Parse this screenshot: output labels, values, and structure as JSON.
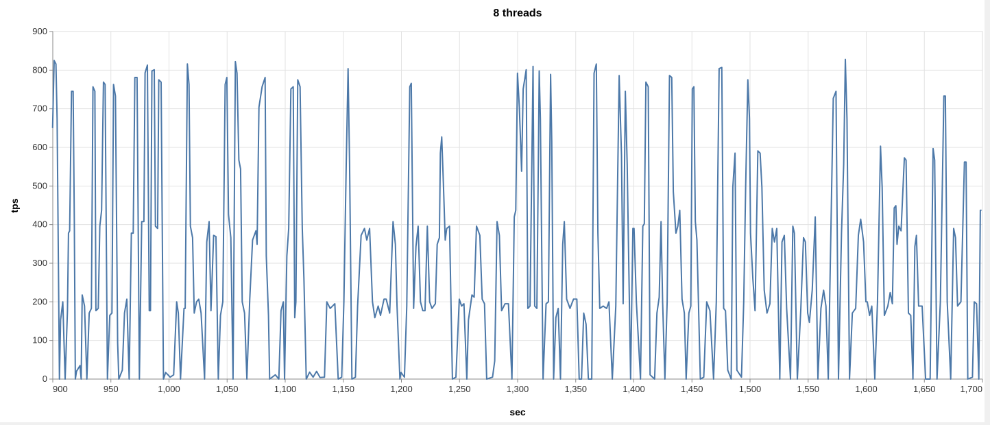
{
  "chart_data": {
    "type": "line",
    "title": "8 threads",
    "xlabel": "sec",
    "ylabel": "tps",
    "xlim": [
      900,
      1700
    ],
    "ylim": [
      0,
      900
    ],
    "xticks": [
      900,
      950,
      1000,
      1050,
      1100,
      1150,
      1200,
      1250,
      1300,
      1350,
      1400,
      1450,
      1500,
      1550,
      1600,
      1650,
      1700
    ],
    "xtick_labels": [
      "900",
      "950",
      "1,000",
      "1,050",
      "1,100",
      "1,150",
      "1,200",
      "1,250",
      "1,300",
      "1,350",
      "1,400",
      "1,450",
      "1,500",
      "1,550",
      "1,600",
      "1,650",
      "1,700"
    ],
    "yticks": [
      0,
      100,
      200,
      300,
      400,
      500,
      600,
      700,
      800,
      900
    ],
    "ytick_labels": [
      "0",
      "100",
      "200",
      "300",
      "400",
      "500",
      "600",
      "700",
      "800",
      "900"
    ],
    "grid": true,
    "color": "#4c78a8",
    "points": [
      [
        899.8,
        650
      ],
      [
        901.2,
        825
      ],
      [
        902.7,
        816
      ],
      [
        903.7,
        674
      ],
      [
        905.7,
        0
      ],
      [
        906.7,
        153
      ],
      [
        908.6,
        200
      ],
      [
        910.6,
        0
      ],
      [
        912.6,
        177
      ],
      [
        913.5,
        378
      ],
      [
        914.5,
        384
      ],
      [
        916.1,
        745
      ],
      [
        917.5,
        745
      ],
      [
        918.5,
        408
      ],
      [
        919.4,
        0
      ],
      [
        920.4,
        20
      ],
      [
        923.4,
        35
      ],
      [
        924.4,
        0
      ],
      [
        925.3,
        218
      ],
      [
        927.3,
        189
      ],
      [
        929.3,
        0
      ],
      [
        931.3,
        171
      ],
      [
        933.2,
        183
      ],
      [
        934.6,
        757
      ],
      [
        936.2,
        745
      ],
      [
        937.1,
        177
      ],
      [
        939.1,
        183
      ],
      [
        940.5,
        396
      ],
      [
        942,
        437
      ],
      [
        943.6,
        769
      ],
      [
        945,
        763
      ],
      [
        947,
        0
      ],
      [
        949,
        165
      ],
      [
        950.9,
        171
      ],
      [
        952.3,
        763
      ],
      [
        953.9,
        733
      ],
      [
        955.8,
        94
      ],
      [
        956.8,
        0
      ],
      [
        959.8,
        23
      ],
      [
        961.7,
        171
      ],
      [
        963.7,
        207
      ],
      [
        965.7,
        0
      ],
      [
        967.6,
        378
      ],
      [
        969.2,
        378
      ],
      [
        970.6,
        781
      ],
      [
        972.5,
        781
      ],
      [
        974.5,
        0
      ],
      [
        976.5,
        408
      ],
      [
        978.4,
        408
      ],
      [
        979.4,
        793
      ],
      [
        981.4,
        813
      ],
      [
        983,
        177
      ],
      [
        984.1,
        177
      ],
      [
        985.3,
        798
      ],
      [
        987.3,
        801
      ],
      [
        988.3,
        396
      ],
      [
        990.2,
        390
      ],
      [
        991.2,
        775
      ],
      [
        993.2,
        769
      ],
      [
        995.2,
        0
      ],
      [
        997.1,
        17
      ],
      [
        999.1,
        11
      ],
      [
        1001,
        5
      ],
      [
        1004,
        11
      ],
      [
        1006.6,
        200
      ],
      [
        1008,
        171
      ],
      [
        1009.9,
        0
      ],
      [
        1012.9,
        183
      ],
      [
        1013.9,
        183
      ],
      [
        1015.8,
        816
      ],
      [
        1017.2,
        763
      ],
      [
        1018.4,
        396
      ],
      [
        1020.3,
        366
      ],
      [
        1021.7,
        171
      ],
      [
        1023.7,
        200
      ],
      [
        1025.6,
        207
      ],
      [
        1027.6,
        171
      ],
      [
        1030.6,
        0
      ],
      [
        1032.5,
        355
      ],
      [
        1034.5,
        408
      ],
      [
        1036.1,
        177
      ],
      [
        1038.4,
        372
      ],
      [
        1040.4,
        369
      ],
      [
        1042.4,
        0
      ],
      [
        1044.3,
        165
      ],
      [
        1046.3,
        200
      ],
      [
        1048.3,
        763
      ],
      [
        1049.8,
        781
      ],
      [
        1051.2,
        426
      ],
      [
        1053.2,
        366
      ],
      [
        1055.1,
        0
      ],
      [
        1057.1,
        822
      ],
      [
        1058.5,
        792
      ],
      [
        1060.1,
        567
      ],
      [
        1061.6,
        544
      ],
      [
        1063,
        200
      ],
      [
        1065,
        171
      ],
      [
        1067,
        0
      ],
      [
        1069.5,
        207
      ],
      [
        1071.9,
        360
      ],
      [
        1074.8,
        384
      ],
      [
        1075.8,
        349
      ],
      [
        1077.4,
        704
      ],
      [
        1080.1,
        757
      ],
      [
        1082.7,
        781
      ],
      [
        1083.7,
        319
      ],
      [
        1085.6,
        165
      ],
      [
        1086.6,
        0
      ],
      [
        1091.5,
        11
      ],
      [
        1094.5,
        0
      ],
      [
        1096.4,
        177
      ],
      [
        1098.4,
        200
      ],
      [
        1099.4,
        0
      ],
      [
        1101.4,
        319
      ],
      [
        1103,
        390
      ],
      [
        1104.9,
        751
      ],
      [
        1106.9,
        757
      ],
      [
        1108.2,
        159
      ],
      [
        1109.2,
        200
      ],
      [
        1110.8,
        775
      ],
      [
        1112.8,
        757
      ],
      [
        1114.7,
        390
      ],
      [
        1116.1,
        260
      ],
      [
        1118.1,
        0
      ],
      [
        1121,
        18
      ],
      [
        1124,
        5
      ],
      [
        1127,
        20
      ],
      [
        1130,
        4
      ],
      [
        1133.8,
        5
      ],
      [
        1135.8,
        200
      ],
      [
        1138.7,
        183
      ],
      [
        1142.7,
        195
      ],
      [
        1145.6,
        0
      ],
      [
        1148.6,
        5
      ],
      [
        1150.5,
        200
      ],
      [
        1152.5,
        556
      ],
      [
        1154.1,
        804
      ],
      [
        1155.4,
        556
      ],
      [
        1157.4,
        0
      ],
      [
        1160.4,
        5
      ],
      [
        1162.3,
        189
      ],
      [
        1165.3,
        372
      ],
      [
        1168.2,
        390
      ],
      [
        1170.2,
        360
      ],
      [
        1172.6,
        390
      ],
      [
        1175.1,
        200
      ],
      [
        1177.1,
        159
      ],
      [
        1180,
        189
      ],
      [
        1182,
        165
      ],
      [
        1185,
        207
      ],
      [
        1186.9,
        207
      ],
      [
        1189.9,
        171
      ],
      [
        1192.8,
        408
      ],
      [
        1194.8,
        349
      ],
      [
        1196.2,
        189
      ],
      [
        1198.7,
        0
      ],
      [
        1199.7,
        17
      ],
      [
        1202.6,
        5
      ],
      [
        1204.6,
        189
      ],
      [
        1207.2,
        757
      ],
      [
        1208.5,
        766
      ],
      [
        1210.5,
        183
      ],
      [
        1212.5,
        343
      ],
      [
        1214.4,
        396
      ],
      [
        1216.4,
        200
      ],
      [
        1218.4,
        177
      ],
      [
        1220.3,
        177
      ],
      [
        1222.3,
        396
      ],
      [
        1224.3,
        200
      ],
      [
        1226.3,
        183
      ],
      [
        1229.2,
        195
      ],
      [
        1230.8,
        349
      ],
      [
        1232.7,
        366
      ],
      [
        1233.5,
        585
      ],
      [
        1234.7,
        627
      ],
      [
        1236.1,
        508
      ],
      [
        1237.7,
        360
      ],
      [
        1239,
        390
      ],
      [
        1241.4,
        396
      ],
      [
        1243.9,
        0
      ],
      [
        1246.9,
        5
      ],
      [
        1249.8,
        207
      ],
      [
        1251.8,
        189
      ],
      [
        1253.8,
        195
      ],
      [
        1256.3,
        0
      ],
      [
        1257.7,
        153
      ],
      [
        1260.7,
        218
      ],
      [
        1262.6,
        212
      ],
      [
        1264.6,
        396
      ],
      [
        1267.5,
        372
      ],
      [
        1269.5,
        207
      ],
      [
        1271.5,
        195
      ],
      [
        1273.4,
        0
      ],
      [
        1278.4,
        5
      ],
      [
        1280.3,
        47
      ],
      [
        1282.3,
        408
      ],
      [
        1284.3,
        372
      ],
      [
        1286.2,
        177
      ],
      [
        1289.2,
        195
      ],
      [
        1292.1,
        195
      ],
      [
        1295.1,
        0
      ],
      [
        1297.1,
        420
      ],
      [
        1298.4,
        437
      ],
      [
        1299.9,
        792
      ],
      [
        1301.5,
        704
      ],
      [
        1303.4,
        538
      ],
      [
        1304.8,
        751
      ],
      [
        1307.4,
        801
      ],
      [
        1308.8,
        183
      ],
      [
        1310.7,
        189
      ],
      [
        1313.3,
        810
      ],
      [
        1314.7,
        189
      ],
      [
        1316.6,
        183
      ],
      [
        1318.6,
        798
      ],
      [
        1319.6,
        674
      ],
      [
        1321.9,
        0
      ],
      [
        1324.5,
        195
      ],
      [
        1326.5,
        200
      ],
      [
        1328.4,
        789
      ],
      [
        1329.4,
        615
      ],
      [
        1331,
        0
      ],
      [
        1332.9,
        159
      ],
      [
        1334.9,
        183
      ],
      [
        1336.9,
        0
      ],
      [
        1338.8,
        349
      ],
      [
        1340.2,
        408
      ],
      [
        1342.2,
        207
      ],
      [
        1345.1,
        183
      ],
      [
        1348.1,
        207
      ],
      [
        1351,
        207
      ],
      [
        1353,
        0
      ],
      [
        1355,
        0
      ],
      [
        1356.9,
        171
      ],
      [
        1358.9,
        142
      ],
      [
        1360.9,
        0
      ],
      [
        1363.8,
        0
      ],
      [
        1365.8,
        792
      ],
      [
        1367.7,
        816
      ],
      [
        1369.1,
        378
      ],
      [
        1370.7,
        183
      ],
      [
        1373.6,
        189
      ],
      [
        1376.6,
        183
      ],
      [
        1378.6,
        200
      ],
      [
        1381.5,
        0
      ],
      [
        1384.5,
        189
      ],
      [
        1387.4,
        786
      ],
      [
        1389.4,
        579
      ],
      [
        1390.8,
        195
      ],
      [
        1392.7,
        745
      ],
      [
        1394.3,
        556
      ],
      [
        1397.2,
        0
      ],
      [
        1399.2,
        390
      ],
      [
        1400.2,
        390
      ],
      [
        1402.2,
        200
      ],
      [
        1405.7,
        0
      ],
      [
        1407.7,
        396
      ],
      [
        1409,
        402
      ],
      [
        1410.4,
        769
      ],
      [
        1412.4,
        757
      ],
      [
        1414,
        11
      ],
      [
        1417.9,
        0
      ],
      [
        1419.9,
        171
      ],
      [
        1421.8,
        212
      ],
      [
        1423.4,
        408
      ],
      [
        1424.8,
        200
      ],
      [
        1426.7,
        0
      ],
      [
        1428.7,
        200
      ],
      [
        1430.7,
        786
      ],
      [
        1432.6,
        781
      ],
      [
        1434,
        485
      ],
      [
        1436.2,
        378
      ],
      [
        1437.9,
        396
      ],
      [
        1439.5,
        437
      ],
      [
        1441.5,
        207
      ],
      [
        1443.5,
        171
      ],
      [
        1445,
        0
      ],
      [
        1447.4,
        171
      ],
      [
        1449,
        189
      ],
      [
        1450.3,
        751
      ],
      [
        1451.7,
        757
      ],
      [
        1452.9,
        408
      ],
      [
        1454.3,
        360
      ],
      [
        1457.2,
        0
      ],
      [
        1460.2,
        5
      ],
      [
        1462.7,
        200
      ],
      [
        1465.5,
        177
      ],
      [
        1468.6,
        0
      ],
      [
        1471,
        200
      ],
      [
        1473.4,
        804
      ],
      [
        1475.7,
        807
      ],
      [
        1477.3,
        183
      ],
      [
        1478.9,
        177
      ],
      [
        1480.8,
        23
      ],
      [
        1483.8,
        0
      ],
      [
        1485.2,
        497
      ],
      [
        1487.1,
        585
      ],
      [
        1488.7,
        23
      ],
      [
        1492.6,
        5
      ],
      [
        1494.6,
        200
      ],
      [
        1496.2,
        497
      ],
      [
        1498.1,
        775
      ],
      [
        1499.5,
        674
      ],
      [
        1500.4,
        378
      ],
      [
        1502.4,
        260
      ],
      [
        1504.3,
        177
      ],
      [
        1506.7,
        591
      ],
      [
        1508.7,
        585
      ],
      [
        1510.2,
        497
      ],
      [
        1512.2,
        230
      ],
      [
        1514.6,
        171
      ],
      [
        1517.1,
        195
      ],
      [
        1519.1,
        390
      ],
      [
        1521,
        355
      ],
      [
        1523,
        390
      ],
      [
        1525.6,
        0
      ],
      [
        1527.5,
        355
      ],
      [
        1529.5,
        372
      ],
      [
        1531.5,
        183
      ],
      [
        1534.8,
        0
      ],
      [
        1536.8,
        396
      ],
      [
        1538.2,
        378
      ],
      [
        1540.7,
        0
      ],
      [
        1543.7,
        183
      ],
      [
        1546,
        366
      ],
      [
        1547.6,
        355
      ],
      [
        1549.6,
        171
      ],
      [
        1551.1,
        147
      ],
      [
        1553.5,
        230
      ],
      [
        1556.1,
        420
      ],
      [
        1558.4,
        0
      ],
      [
        1561,
        183
      ],
      [
        1563.3,
        230
      ],
      [
        1565.3,
        189
      ],
      [
        1567.3,
        0
      ],
      [
        1569.6,
        390
      ],
      [
        1571.6,
        727
      ],
      [
        1574,
        745
      ],
      [
        1576.1,
        0
      ],
      [
        1578.7,
        378
      ],
      [
        1580.6,
        556
      ],
      [
        1582,
        828
      ],
      [
        1583.4,
        674
      ],
      [
        1585.6,
        0
      ],
      [
        1588,
        171
      ],
      [
        1590.9,
        183
      ],
      [
        1593.2,
        372
      ],
      [
        1595.2,
        414
      ],
      [
        1597.7,
        355
      ],
      [
        1599.7,
        200
      ],
      [
        1600.9,
        200
      ],
      [
        1602.9,
        165
      ],
      [
        1604.8,
        189
      ],
      [
        1607.4,
        0
      ],
      [
        1609.7,
        200
      ],
      [
        1612.3,
        603
      ],
      [
        1613.7,
        497
      ],
      [
        1615.6,
        165
      ],
      [
        1618.6,
        189
      ],
      [
        1620.6,
        224
      ],
      [
        1622.5,
        195
      ],
      [
        1624.1,
        443
      ],
      [
        1625.5,
        449
      ],
      [
        1626.5,
        349
      ],
      [
        1628,
        396
      ],
      [
        1630,
        384
      ],
      [
        1632.8,
        573
      ],
      [
        1634.3,
        567
      ],
      [
        1636.3,
        171
      ],
      [
        1638.3,
        165
      ],
      [
        1640.2,
        0
      ],
      [
        1641.8,
        343
      ],
      [
        1643.2,
        372
      ],
      [
        1645.1,
        189
      ],
      [
        1648.1,
        189
      ],
      [
        1651.1,
        0
      ],
      [
        1655,
        0
      ],
      [
        1657.5,
        597
      ],
      [
        1658.9,
        567
      ],
      [
        1660.9,
        0
      ],
      [
        1663.8,
        200
      ],
      [
        1666.8,
        733
      ],
      [
        1668.1,
        733
      ],
      [
        1669.7,
        200
      ],
      [
        1672.7,
        0
      ],
      [
        1675.2,
        390
      ],
      [
        1676.8,
        366
      ],
      [
        1678.6,
        189
      ],
      [
        1681.5,
        200
      ],
      [
        1684.5,
        562
      ],
      [
        1685.9,
        562
      ],
      [
        1687.4,
        0
      ],
      [
        1691.4,
        5
      ],
      [
        1692.9,
        200
      ],
      [
        1694.9,
        195
      ],
      [
        1696.9,
        0
      ],
      [
        1698.2,
        437
      ],
      [
        1699.2,
        437
      ]
    ]
  }
}
